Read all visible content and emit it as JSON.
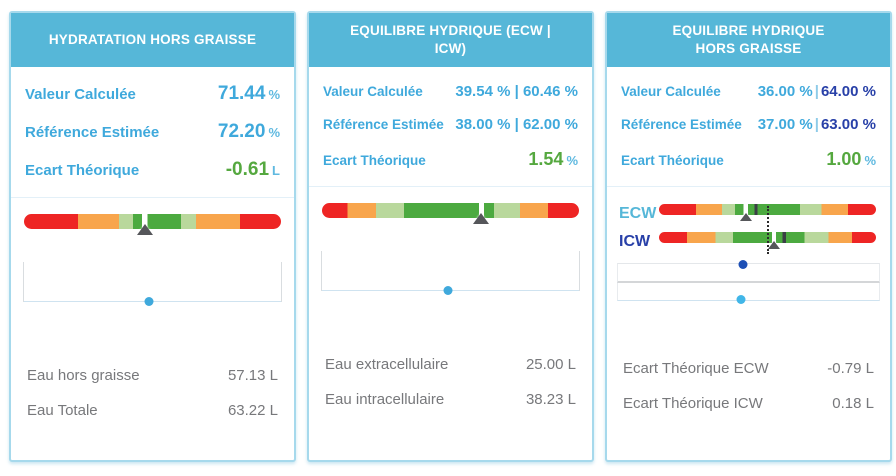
{
  "colors": {
    "header_bg": "#56b7d8",
    "card_border": "#a6d9ec",
    "label_blue": "#3fa9dc",
    "dark_blue": "#2840a8",
    "green_text": "#55a83f",
    "gray_text": "#77787b",
    "dot_light_blue": "#3fa9dc",
    "dot_dark_blue": "#1d4fb5",
    "gauge": {
      "red": "#ee2524",
      "orange": "#f8a54c",
      "lightgreen": "#b9d89c",
      "green": "#4caa40",
      "notch": "#ffffff",
      "tick": "#3a3f45"
    }
  },
  "panels": [
    {
      "title": "HYDRATATION HORS GRAISSE",
      "stats": [
        {
          "label": "Valeur Calculée",
          "value": "71.44",
          "unit": "%"
        },
        {
          "label": "Référence Estimée",
          "value": "72.20",
          "unit": "%"
        },
        {
          "label": "Ecart Théorique",
          "value": "-0.61",
          "unit": "L"
        }
      ],
      "gauge": {
        "segments": [
          [
            "red",
            21
          ],
          [
            "orange",
            16
          ],
          [
            "lightgreen",
            5.5
          ],
          [
            "green",
            3.5
          ],
          [
            "notch",
            2
          ],
          [
            "green",
            13
          ],
          [
            "lightgreen",
            6
          ],
          [
            "orange",
            17
          ],
          [
            "red",
            16
          ]
        ],
        "marker_pct": 47
      },
      "slider": {
        "dot_pct": 48.5
      },
      "details": [
        {
          "label": "Eau hors graisse",
          "value": "57.13 L"
        },
        {
          "label": "Eau Totale",
          "value": "63.22 L"
        }
      ]
    },
    {
      "title": "EQUILIBRE HYDRIQUE (ECW | ICW)",
      "stats": [
        {
          "label": "Valeur Calculée",
          "value": "39.54 % | 60.46 %",
          "unit": ""
        },
        {
          "label": "Référence Estimée",
          "value": "38.00 % | 62.00 %",
          "unit": ""
        },
        {
          "label": "Ecart Théorique",
          "value": "1.54",
          "unit": "%"
        }
      ],
      "gauge": {
        "segments": [
          [
            "red",
            10
          ],
          [
            "orange",
            11
          ],
          [
            "lightgreen",
            11
          ],
          [
            "green",
            29
          ],
          [
            "notch",
            2
          ],
          [
            "green",
            4
          ],
          [
            "lightgreen",
            10
          ],
          [
            "orange",
            11
          ],
          [
            "red",
            12
          ]
        ],
        "marker_pct": 62
      },
      "slider": {
        "dot_pct": 49
      },
      "details": [
        {
          "label": "Eau extracellulaire",
          "value": "25.00 L"
        },
        {
          "label": "Eau intracellulaire",
          "value": "38.23 L"
        }
      ]
    },
    {
      "title": "EQUILIBRE HYDRIQUE HORS GRAISSE",
      "stats": [
        {
          "label": "Valeur Calculée",
          "value_a": "36.00 %",
          "sep": "|",
          "value_b": "64.00 %"
        },
        {
          "label": "Référence Estimée",
          "value_a": "37.00 %",
          "sep": "|",
          "value_b": "63.00 %"
        },
        {
          "label": "Ecart Théorique",
          "value": "1.00",
          "unit": "%"
        }
      ],
      "bars": [
        {
          "label": "ECW",
          "segments": [
            [
              "red",
              17
            ],
            [
              "orange",
              12
            ],
            [
              "lightgreen",
              6
            ],
            [
              "green",
              4
            ],
            [
              "notch",
              2
            ],
            [
              "green",
              3
            ],
            [
              "tick",
              1.5
            ],
            [
              "green",
              19.5
            ],
            [
              "lightgreen",
              10
            ],
            [
              "orange",
              12
            ],
            [
              "red",
              13
            ]
          ],
          "marker_pct": 40
        },
        {
          "label": "ICW",
          "segments": [
            [
              "red",
              13
            ],
            [
              "orange",
              13
            ],
            [
              "lightgreen",
              8
            ],
            [
              "green",
              18
            ],
            [
              "notch",
              2
            ],
            [
              "green",
              3
            ],
            [
              "tick",
              1.5
            ],
            [
              "green",
              8.5
            ],
            [
              "lightgreen",
              11
            ],
            [
              "orange",
              11
            ],
            [
              "red",
              11
            ]
          ],
          "marker_pct": 53
        }
      ],
      "dotted_pct": 50,
      "sliders": [
        {
          "dot_pct": 48
        },
        {
          "dot_pct": 47
        }
      ],
      "details": [
        {
          "label": "Ecart Théorique ECW",
          "value": "-0.79 L"
        },
        {
          "label": "Ecart Théorique ICW",
          "value": "0.18 L"
        }
      ]
    }
  ]
}
